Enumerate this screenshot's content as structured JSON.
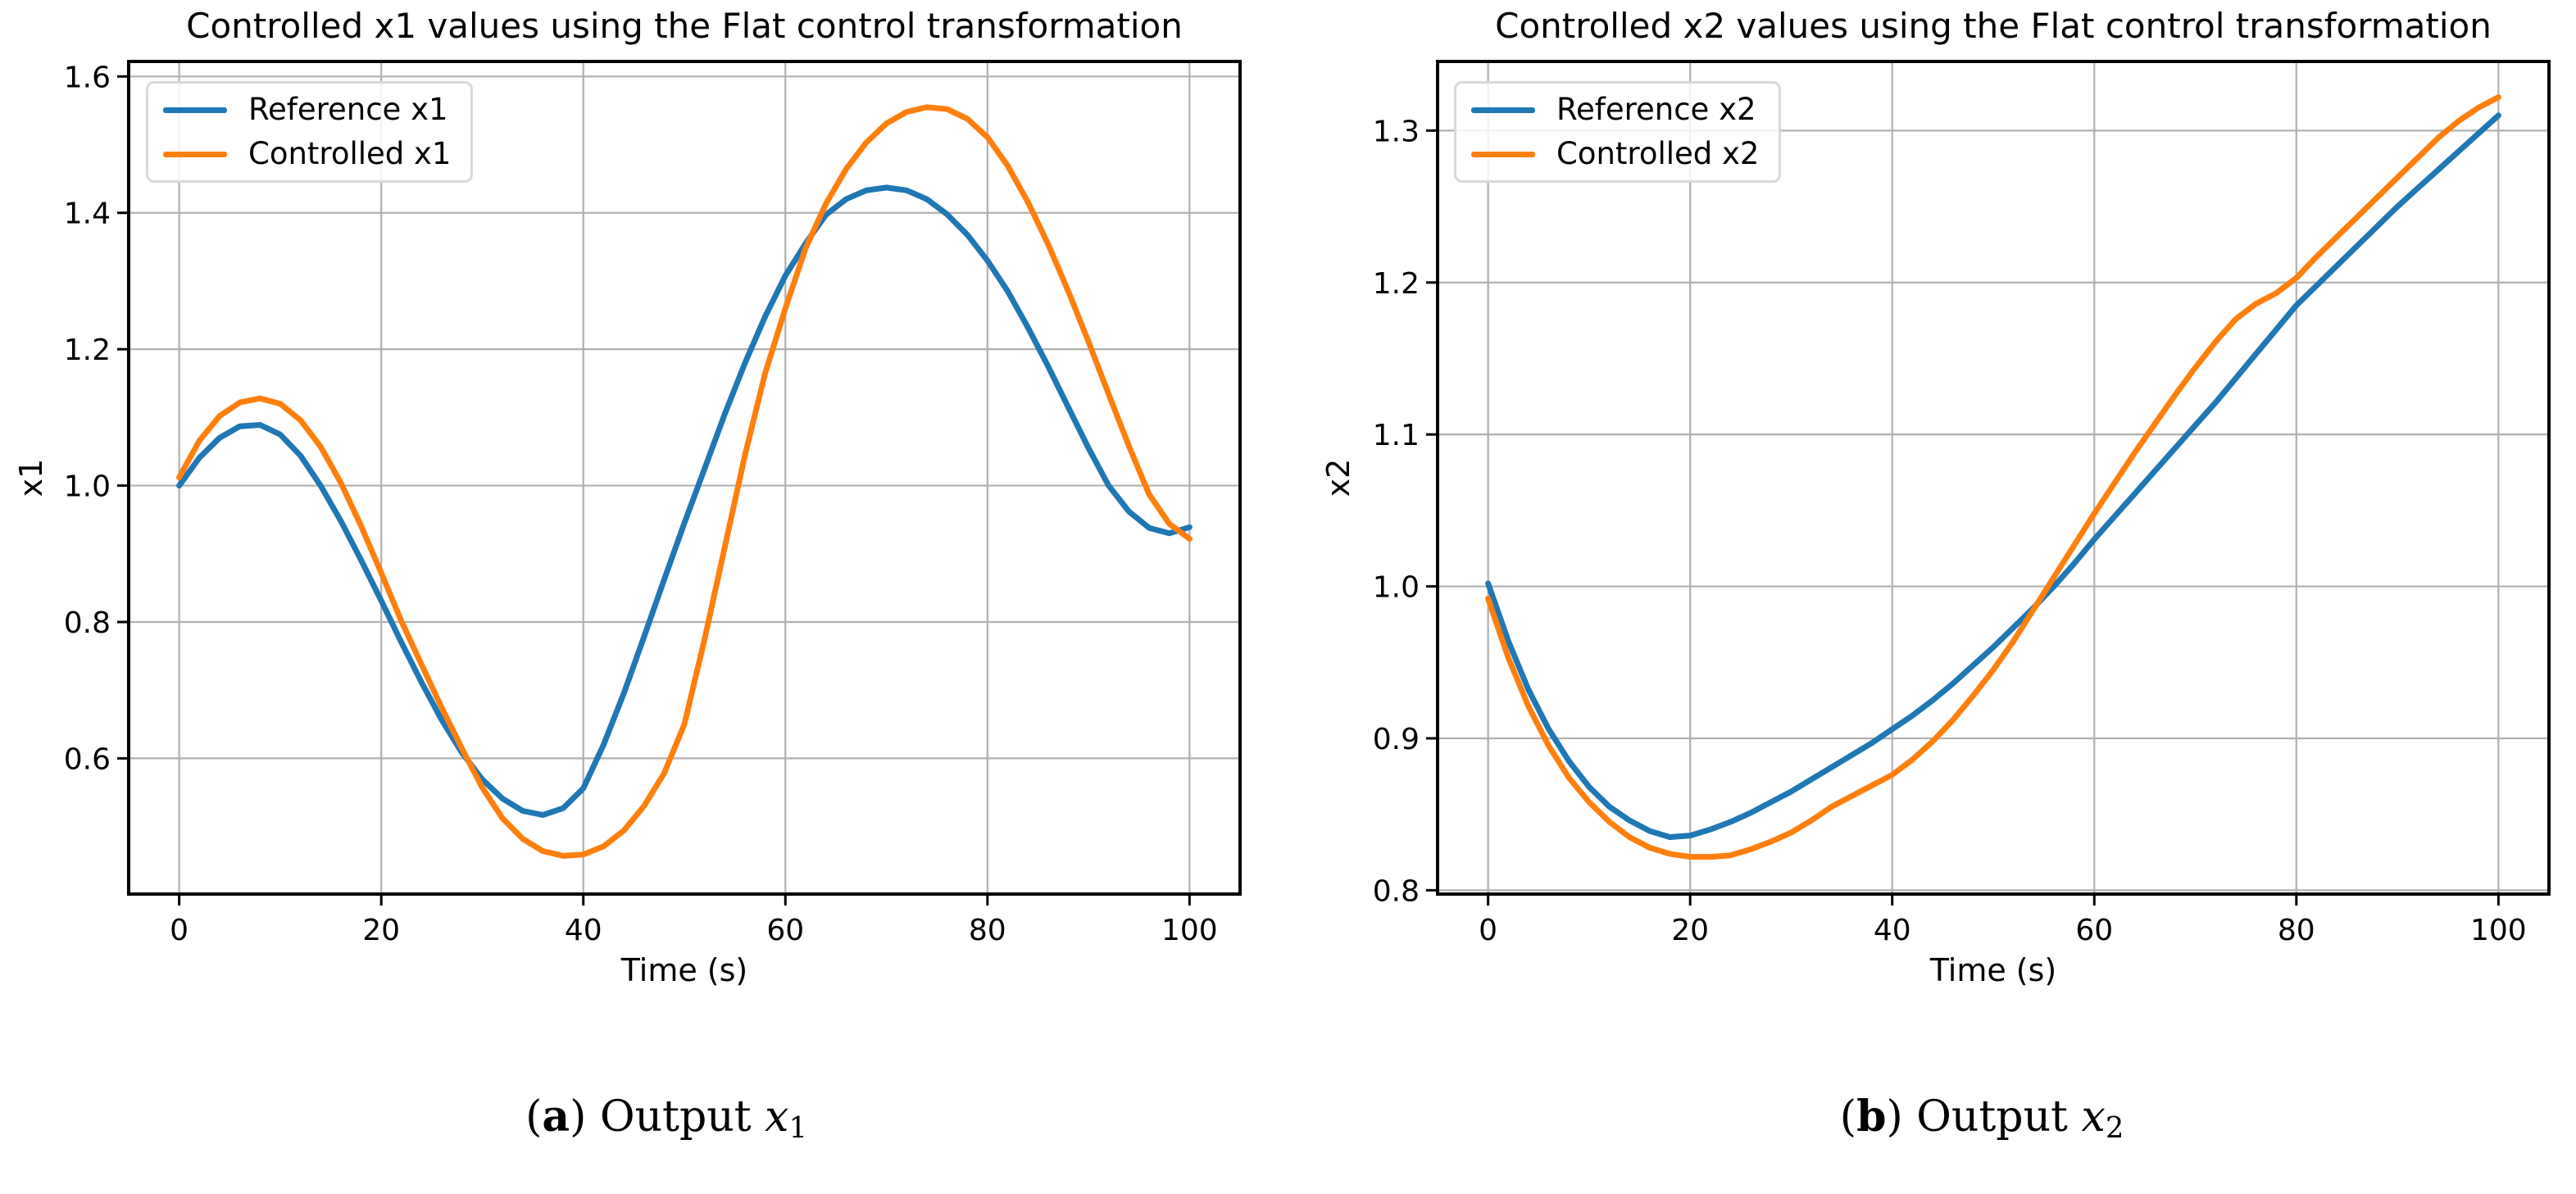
{
  "style": {
    "grid_color": "#b0b0b0",
    "spine_color": "#000000",
    "background": "#ffffff",
    "series_blue": "#1f77b4",
    "series_orange": "#ff7f0e"
  },
  "captions": [
    {
      "open": "(",
      "letter": "a",
      "close": ") ",
      "word": "Output ",
      "variable": "x",
      "subscript": "1"
    },
    {
      "open": "(",
      "letter": "b",
      "close": ") ",
      "word": "Output ",
      "variable": "x",
      "subscript": "2"
    }
  ],
  "chart_data": [
    {
      "type": "line",
      "title": "Controlled x1 values using the Flat control transformation",
      "xlabel": "Time (s)",
      "ylabel": "x1",
      "xlim": [
        -5,
        105
      ],
      "ylim": [
        0.401,
        1.622
      ],
      "xticks": [
        0,
        20,
        40,
        60,
        80,
        100
      ],
      "yticks": [
        0.6,
        0.8,
        1.0,
        1.2,
        1.4,
        1.6
      ],
      "grid": true,
      "legend": {
        "position": "upper left",
        "entries": [
          {
            "label": "Reference x1",
            "color": "#1f77b4"
          },
          {
            "label": "Controlled x1",
            "color": "#ff7f0e"
          }
        ]
      },
      "x": [
        0,
        2,
        4,
        6,
        8,
        10,
        12,
        14,
        16,
        18,
        20,
        22,
        24,
        26,
        28,
        30,
        32,
        34,
        36,
        38,
        40,
        42,
        44,
        46,
        48,
        50,
        52,
        54,
        56,
        58,
        60,
        62,
        64,
        66,
        68,
        70,
        72,
        74,
        76,
        78,
        80,
        82,
        84,
        86,
        88,
        90,
        92,
        94,
        96,
        98,
        100
      ],
      "series": [
        {
          "name": "Reference x1",
          "color": "#1f77b4",
          "values": [
            1.0,
            1.041,
            1.07,
            1.087,
            1.089,
            1.075,
            1.044,
            1.0,
            0.948,
            0.891,
            0.831,
            0.77,
            0.711,
            0.656,
            0.608,
            0.569,
            0.541,
            0.523,
            0.517,
            0.527,
            0.556,
            0.62,
            0.695,
            0.778,
            0.862,
            0.945,
            1.025,
            1.105,
            1.18,
            1.248,
            1.308,
            1.355,
            1.397,
            1.42,
            1.433,
            1.437,
            1.433,
            1.42,
            1.398,
            1.368,
            1.33,
            1.285,
            1.232,
            1.175,
            1.115,
            1.055,
            1.0,
            0.962,
            0.938,
            0.93,
            0.939
          ]
        },
        {
          "name": "Controlled x1",
          "color": "#ff7f0e",
          "values": [
            1.012,
            1.066,
            1.102,
            1.122,
            1.128,
            1.12,
            1.096,
            1.057,
            1.004,
            0.941,
            0.872,
            0.801,
            0.737,
            0.674,
            0.614,
            0.557,
            0.512,
            0.482,
            0.464,
            0.457,
            0.459,
            0.471,
            0.494,
            0.53,
            0.578,
            0.65,
            0.775,
            0.91,
            1.045,
            1.165,
            1.26,
            1.348,
            1.413,
            1.464,
            1.503,
            1.531,
            1.548,
            1.555,
            1.552,
            1.538,
            1.511,
            1.469,
            1.416,
            1.354,
            1.285,
            1.211,
            1.134,
            1.058,
            0.987,
            0.944,
            0.922
          ]
        }
      ]
    },
    {
      "type": "line",
      "title": "Controlled x2 values using the Flat control transformation",
      "xlabel": "Time (s)",
      "ylabel": "x2",
      "xlim": [
        -5,
        105
      ],
      "ylim": [
        0.7975,
        1.3455
      ],
      "xticks": [
        0,
        20,
        40,
        60,
        80,
        100
      ],
      "yticks": [
        0.8,
        0.9,
        1.0,
        1.1,
        1.2,
        1.3
      ],
      "grid": true,
      "legend": {
        "position": "upper left",
        "entries": [
          {
            "label": "Reference x2",
            "color": "#1f77b4"
          },
          {
            "label": "Controlled x2",
            "color": "#ff7f0e"
          }
        ]
      },
      "x": [
        0,
        2,
        4,
        6,
        8,
        10,
        12,
        14,
        16,
        18,
        20,
        22,
        24,
        26,
        28,
        30,
        32,
        34,
        36,
        38,
        40,
        42,
        44,
        46,
        48,
        50,
        52,
        54,
        56,
        58,
        60,
        62,
        64,
        66,
        68,
        70,
        72,
        74,
        76,
        78,
        80,
        82,
        84,
        86,
        88,
        90,
        92,
        94,
        96,
        98,
        100
      ],
      "series": [
        {
          "name": "Reference x2",
          "color": "#1f77b4",
          "values": [
            1.002,
            0.964,
            0.932,
            0.906,
            0.885,
            0.868,
            0.855,
            0.846,
            0.839,
            0.835,
            0.836,
            0.84,
            0.845,
            0.851,
            0.858,
            0.865,
            0.873,
            0.881,
            0.889,
            0.897,
            0.906,
            0.915,
            0.925,
            0.936,
            0.948,
            0.96,
            0.973,
            0.986,
            1.0,
            1.015,
            1.031,
            1.046,
            1.061,
            1.076,
            1.091,
            1.106,
            1.121,
            1.137,
            1.153,
            1.169,
            1.185,
            1.198,
            1.211,
            1.224,
            1.237,
            1.25,
            1.262,
            1.274,
            1.286,
            1.298,
            1.31
          ]
        },
        {
          "name": "Controlled x2",
          "color": "#ff7f0e",
          "values": [
            0.992,
            0.953,
            0.921,
            0.895,
            0.874,
            0.858,
            0.845,
            0.835,
            0.828,
            0.824,
            0.822,
            0.822,
            0.823,
            0.827,
            0.832,
            0.838,
            0.846,
            0.855,
            0.862,
            0.869,
            0.876,
            0.886,
            0.898,
            0.912,
            0.928,
            0.945,
            0.964,
            0.985,
            1.006,
            1.027,
            1.048,
            1.068,
            1.088,
            1.107,
            1.126,
            1.144,
            1.161,
            1.176,
            1.186,
            1.193,
            1.203,
            1.217,
            1.23,
            1.243,
            1.256,
            1.269,
            1.282,
            1.295,
            1.306,
            1.315,
            1.322
          ]
        }
      ]
    }
  ]
}
